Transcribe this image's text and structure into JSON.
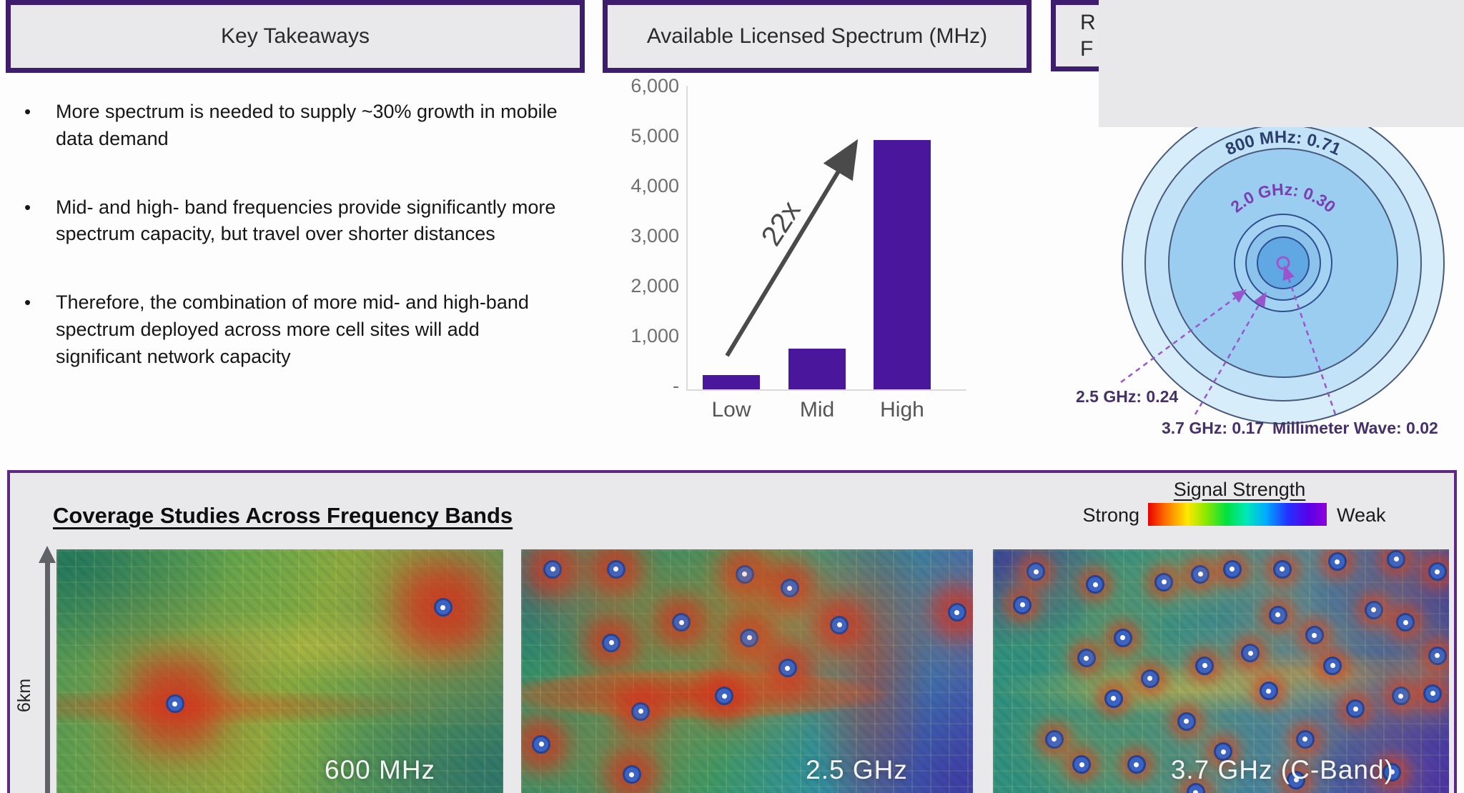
{
  "key_takeaways": {
    "title": "Key Takeaways",
    "bullets": [
      "More spectrum is needed to supply ~30% growth in mobile data demand",
      "Mid- and high- band frequencies provide significantly more spectrum capacity, but travel over shorter distances",
      "Therefore, the combination of more mid- and high-band spectrum deployed across more cell sites will add significant network capacity"
    ]
  },
  "chart_data": {
    "type": "bar",
    "title": "Available Licensed Spectrum (MHz)",
    "categories": [
      "Low",
      "Mid",
      "High"
    ],
    "values": [
      225,
      810,
      4950
    ],
    "ymax": 6000,
    "ytick_labels": [
      "6,000",
      "5,000",
      "4,000",
      "3,000",
      "2,000",
      "1,000",
      "-"
    ],
    "annotation": "22x",
    "bar_color": "#4a169c",
    "grid": false,
    "legend_position": "none"
  },
  "partial_box": {
    "line1": "R",
    "line2": "F"
  },
  "propagation_diagram": {
    "arc_labels": [
      {
        "text": "800 MHz: 0.71",
        "color": "#2c3d6f"
      },
      {
        "text": "2.0 GHz: 0.30",
        "color": "#7b3cb4"
      }
    ],
    "callouts": [
      {
        "text": "2.5 GHz: 0.24"
      },
      {
        "text": "3.7 GHz: 0.17"
      },
      {
        "text": "Millimeter Wave: 0.02"
      }
    ],
    "relative_values": {
      "800 MHz": 0.71,
      "2.0 GHz": 0.3,
      "2.5 GHz": 0.24,
      "3.7 GHz": 0.17,
      "Millimeter Wave": 0.02
    }
  },
  "coverage": {
    "title": "Coverage Studies Across Frequency Bands",
    "legend": {
      "title": "Signal Strength",
      "left_label": "Strong",
      "right_label": "Weak"
    },
    "distance_label": "6km",
    "maps": [
      {
        "label": "600 MHz",
        "sites": [
          [
            26,
            60
          ],
          [
            86,
            22
          ]
        ]
      },
      {
        "label": "2.5 GHz",
        "sites": [
          [
            6.5,
            7
          ],
          [
            20.5,
            7
          ],
          [
            49,
            9
          ],
          [
            59,
            14.5
          ],
          [
            35,
            28
          ],
          [
            50,
            34
          ],
          [
            70,
            29
          ],
          [
            96,
            24
          ],
          [
            19.5,
            36
          ],
          [
            58.5,
            46
          ],
          [
            44.5,
            57
          ],
          [
            26,
            63
          ],
          [
            4,
            76
          ],
          [
            24,
            88
          ]
        ]
      },
      {
        "label": "3.7 GHz (C-Band)",
        "sites": [
          [
            9,
            8
          ],
          [
            22,
            13
          ],
          [
            37,
            12
          ],
          [
            45,
            9
          ],
          [
            52,
            7
          ],
          [
            63,
            7
          ],
          [
            75,
            4
          ],
          [
            88,
            3
          ],
          [
            97,
            8
          ],
          [
            6,
            21
          ],
          [
            20,
            42
          ],
          [
            28,
            34
          ],
          [
            34,
            50
          ],
          [
            46,
            45
          ],
          [
            56,
            40
          ],
          [
            62,
            25
          ],
          [
            70,
            33
          ],
          [
            74,
            45
          ],
          [
            83,
            23
          ],
          [
            90,
            28
          ],
          [
            97,
            41
          ],
          [
            13,
            74
          ],
          [
            19,
            84
          ],
          [
            31,
            84
          ],
          [
            42,
            67
          ],
          [
            50,
            79
          ],
          [
            60,
            55
          ],
          [
            68,
            74
          ],
          [
            79,
            62
          ],
          [
            87,
            87
          ],
          [
            89,
            57
          ],
          [
            96,
            56
          ],
          [
            44,
            95
          ],
          [
            26,
            58
          ],
          [
            66,
            90
          ]
        ]
      }
    ]
  }
}
